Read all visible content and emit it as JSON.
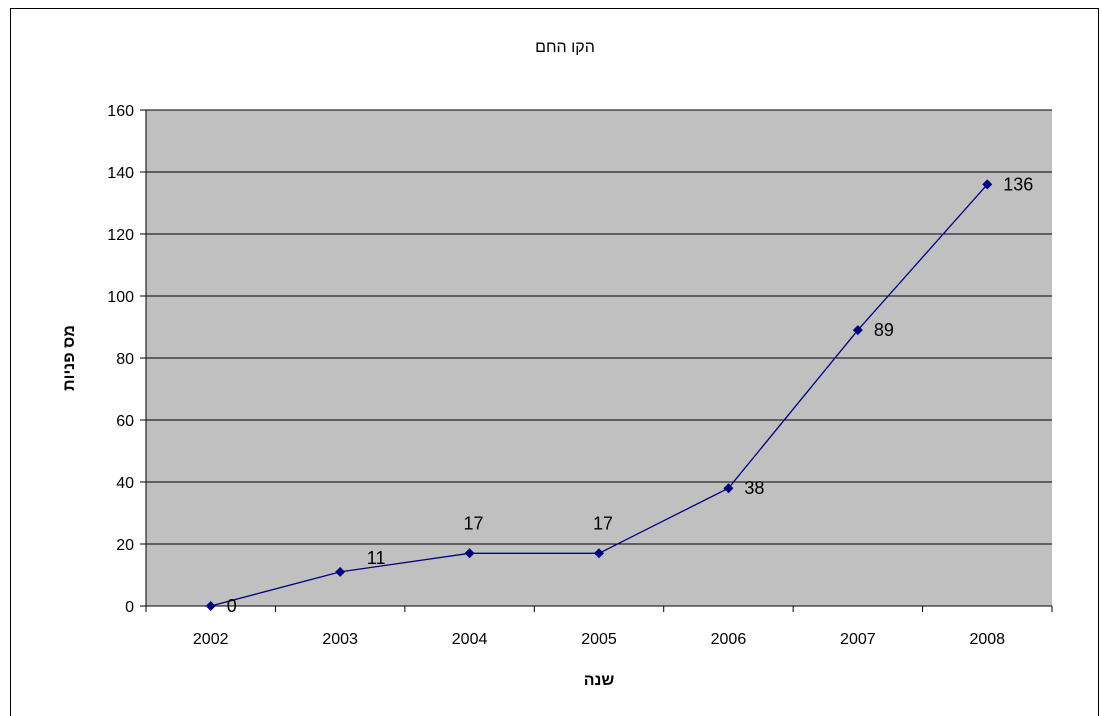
{
  "chart_data": {
    "type": "line",
    "title": "הקו החם",
    "xlabel": "שנה",
    "ylabel": "מס פניות",
    "categories": [
      "2002",
      "2003",
      "2004",
      "2005",
      "2006",
      "2007",
      "2008"
    ],
    "series": [
      {
        "values": [
          0,
          11,
          17,
          17,
          38,
          89,
          136
        ],
        "color": "#000080"
      }
    ],
    "ylim": [
      0,
      160
    ],
    "yticks": [
      "0",
      "20",
      "40",
      "60",
      "80",
      "100",
      "120",
      "140",
      "160"
    ],
    "grid": true,
    "plot_background": "#c0c0c0",
    "legend": "none"
  }
}
